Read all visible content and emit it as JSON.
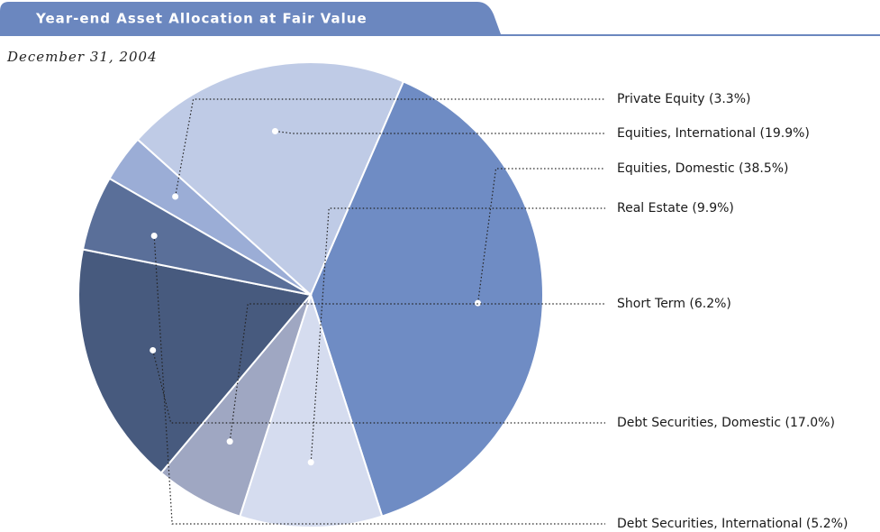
{
  "chart_data": {
    "type": "pie",
    "title": "Year-end Asset Allocation at Fair Value",
    "subtitle": "December 31, 2004",
    "categories": [
      "Private Equity (3.3%)",
      "Equities, International (19.9%)",
      "Equities, Domestic (38.5%)",
      "Real Estate (9.9%)",
      "Short Term (6.2%)",
      "Debt Securities, Domestic (17.0%)",
      "Debt Securities, International (5.2%)"
    ],
    "values": [
      3.3,
      19.9,
      38.5,
      9.9,
      6.2,
      17.0,
      5.2
    ],
    "colors": [
      "#9badd6",
      "#bfcbe6",
      "#6f8cc4",
      "#d5dcef",
      "#9fa7c2",
      "#475a7e",
      "#5a6f99"
    ]
  }
}
